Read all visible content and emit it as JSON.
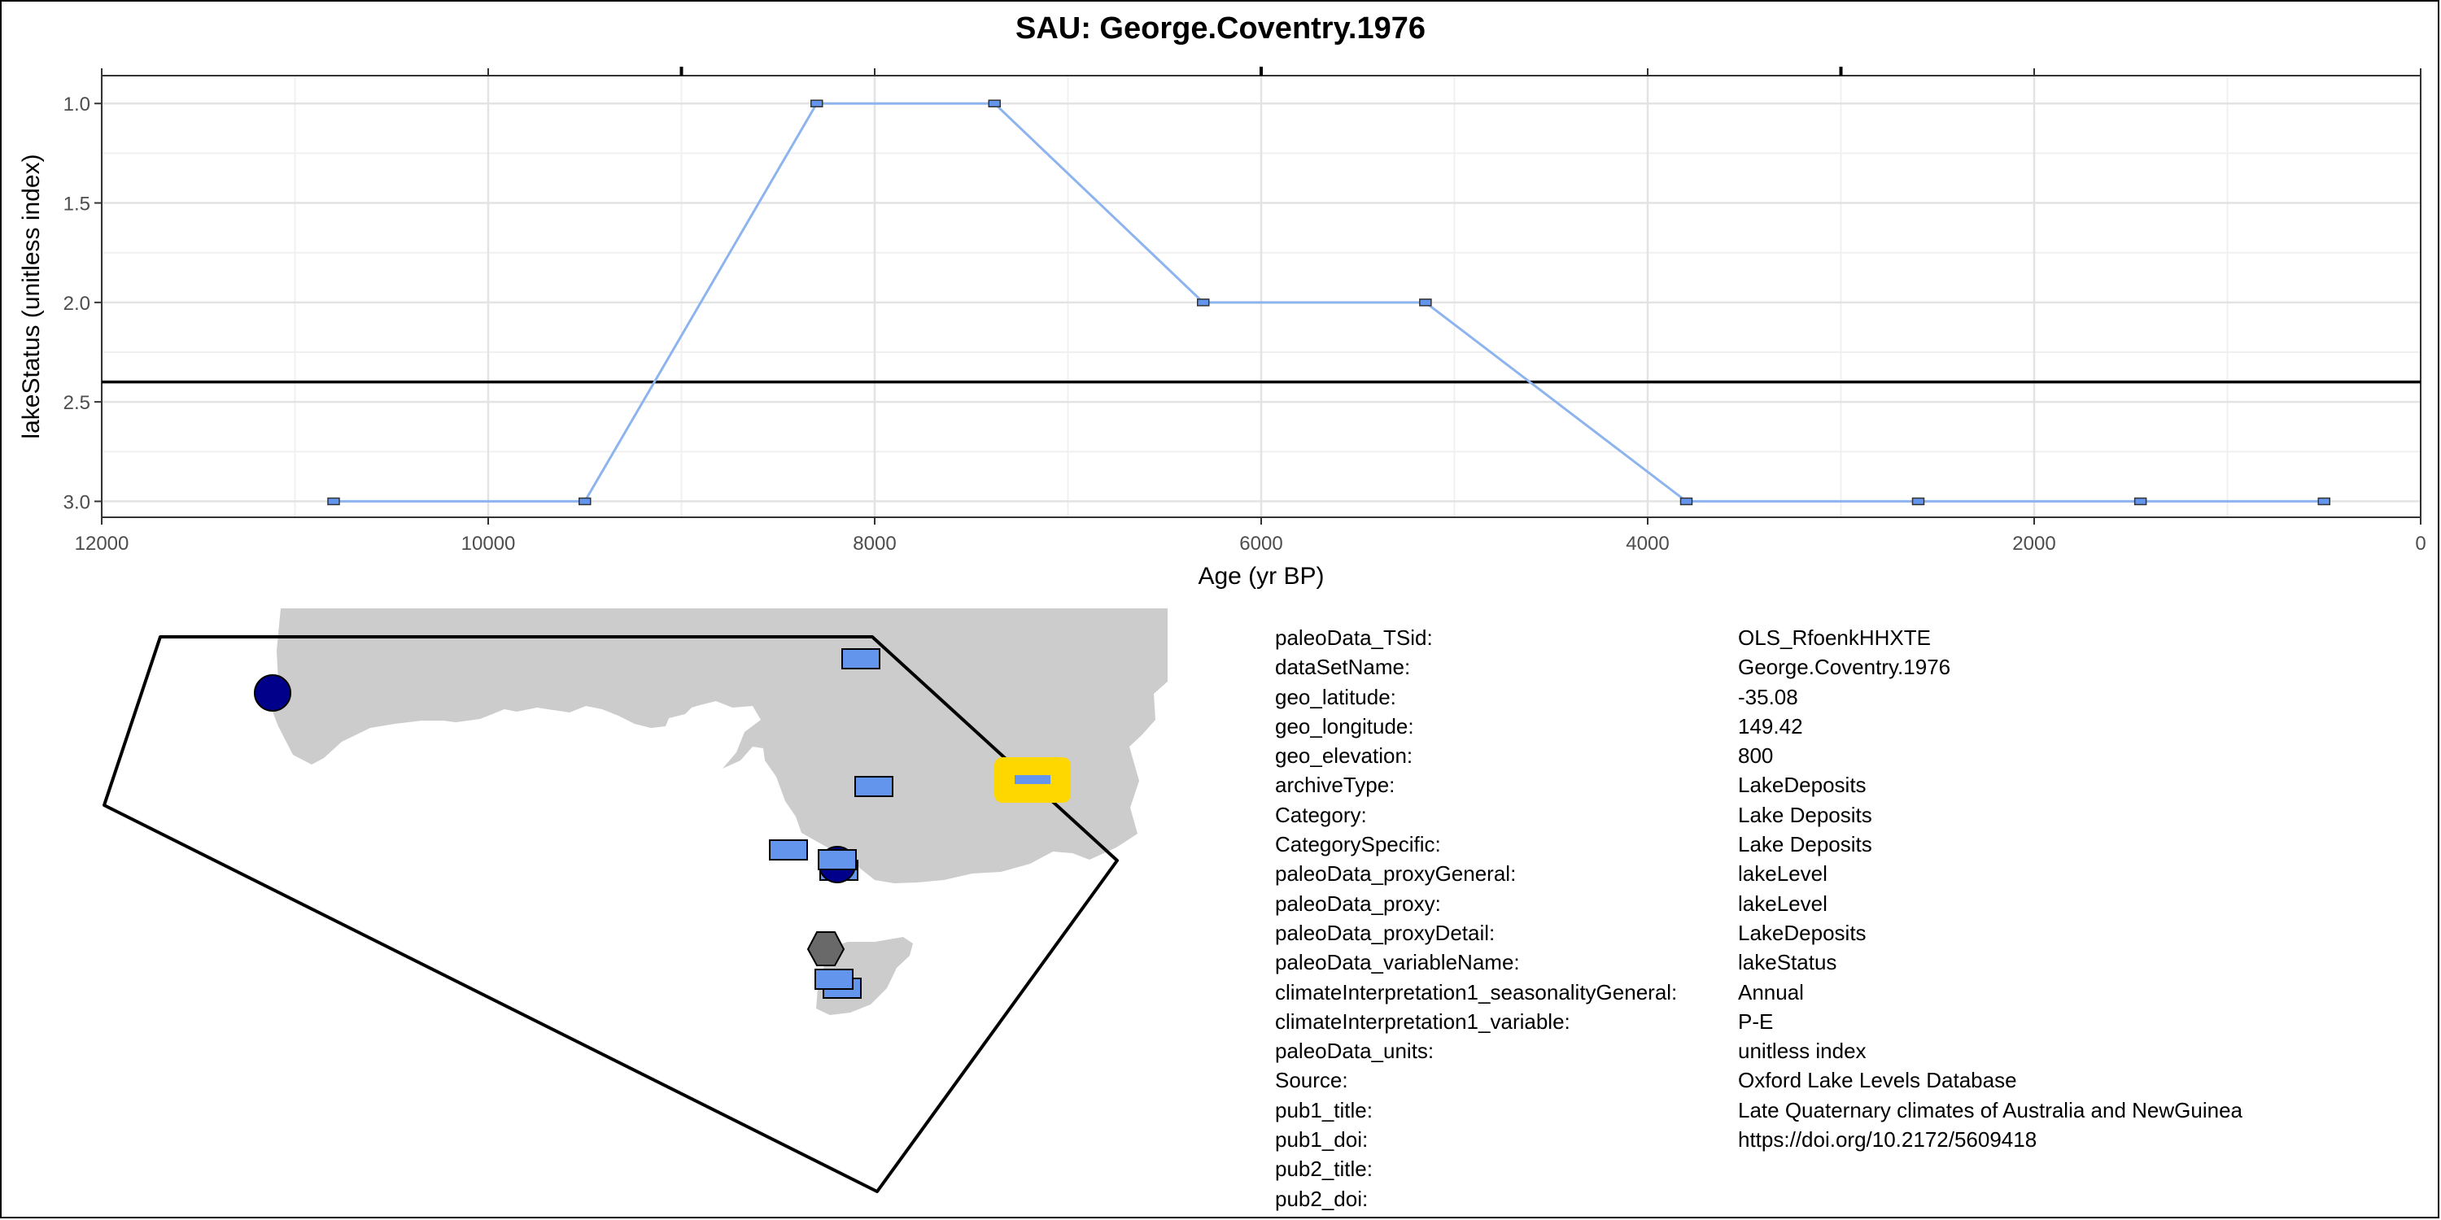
{
  "chart_data": {
    "type": "line",
    "title": "SAU: George.Coventry.1976",
    "xlabel": "Age (yr BP)",
    "ylabel": "lakeStatus (unitless index)",
    "x_reversed": true,
    "y_reversed": true,
    "xlim": [
      12000,
      0
    ],
    "ylim": [
      3.08,
      0.86
    ],
    "x_ticks": [
      "12000",
      "10000",
      "8000",
      "6000",
      "4000",
      "2000",
      "0"
    ],
    "y_ticks": [
      "1.0",
      "1.5",
      "2.0",
      "2.5",
      "3.0"
    ],
    "grid": true,
    "reference_line_y": 2.4,
    "series": [
      {
        "x": [
          10800,
          9500,
          8300,
          7380,
          6300,
          5150,
          3800,
          2600,
          1450,
          500
        ],
        "y": [
          3,
          3,
          1,
          1,
          2,
          2,
          3,
          3,
          3,
          3
        ]
      }
    ]
  },
  "colors": {
    "line": "#8db4ee",
    "marker": "#6495ed",
    "land": "#cccccc",
    "highlight": "#ffd700",
    "circle_marker": "#00008b",
    "hexagon_marker": "#696969"
  },
  "metadata": [
    {
      "key": "paleoData_TSid:",
      "value": "OLS_RfoenkHHXTE"
    },
    {
      "key": "dataSetName:",
      "value": "George.Coventry.1976"
    },
    {
      "key": "geo_latitude:",
      "value": "-35.08"
    },
    {
      "key": "geo_longitude:",
      "value": "149.42"
    },
    {
      "key": "geo_elevation:",
      "value": "800"
    },
    {
      "key": "archiveType:",
      "value": "LakeDeposits"
    },
    {
      "key": "Category:",
      "value": "Lake Deposits"
    },
    {
      "key": "CategorySpecific:",
      "value": "Lake Deposits"
    },
    {
      "key": "paleoData_proxyGeneral:",
      "value": "lakeLevel"
    },
    {
      "key": "paleoData_proxy:",
      "value": "lakeLevel"
    },
    {
      "key": "paleoData_proxyDetail:",
      "value": "LakeDeposits"
    },
    {
      "key": "paleoData_variableName:",
      "value": "lakeStatus"
    },
    {
      "key": "climateInterpretation1_seasonalityGeneral:",
      "value": "Annual"
    },
    {
      "key": "climateInterpretation1_variable:",
      "value": "P-E"
    },
    {
      "key": "paleoData_units:",
      "value": "unitless index"
    },
    {
      "key": "Source:",
      "value": "Oxford Lake Levels Database"
    },
    {
      "key": "pub1_title:",
      "value": "Late Quaternary climates of Australia and NewGuinea"
    },
    {
      "key": "pub1_doi:",
      "value": "https://doi.org/10.2172/5609418"
    },
    {
      "key": "pub2_title:",
      "value": ""
    },
    {
      "key": "pub2_doi:",
      "value": ""
    }
  ]
}
